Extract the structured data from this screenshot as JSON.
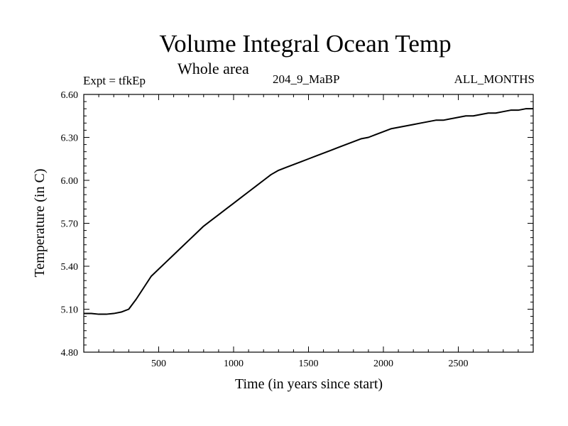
{
  "chart_data": {
    "type": "line",
    "title": "Volume Integral Ocean Temp",
    "subtitle": "Whole area",
    "experiment_label": "Expt = tfkEp",
    "period_label": "204_9_MaBP",
    "months_label": "ALL_MONTHS",
    "xlabel": "Time (in years since start)",
    "ylabel": "Temperature (in C)",
    "xlim": [
      0,
      3000
    ],
    "ylim": [
      4.8,
      6.6
    ],
    "x_ticks": [
      500,
      1000,
      1500,
      2000,
      2500
    ],
    "x_tick_labels": [
      "500",
      "1000",
      "1500",
      "2000",
      "2500"
    ],
    "y_ticks": [
      4.8,
      5.1,
      5.4,
      5.7,
      6.0,
      6.3,
      6.6
    ],
    "y_tick_labels": [
      "4.80",
      "5.10",
      "5.40",
      "5.70",
      "6.00",
      "6.30",
      "6.60"
    ],
    "grid": false,
    "series": [
      {
        "name": "",
        "color": "#000000",
        "x": [
          0,
          50,
          100,
          150,
          200,
          250,
          300,
          350,
          400,
          450,
          500,
          550,
          600,
          650,
          700,
          750,
          800,
          850,
          900,
          950,
          1000,
          1050,
          1100,
          1150,
          1200,
          1250,
          1300,
          1350,
          1400,
          1450,
          1500,
          1550,
          1600,
          1650,
          1700,
          1750,
          1800,
          1850,
          1900,
          1950,
          2000,
          2050,
          2100,
          2150,
          2200,
          2250,
          2300,
          2350,
          2400,
          2450,
          2500,
          2550,
          2600,
          2650,
          2700,
          2750,
          2800,
          2850,
          2900,
          2950,
          3000
        ],
        "values": [
          5.07,
          5.07,
          5.065,
          5.065,
          5.07,
          5.08,
          5.1,
          5.17,
          5.25,
          5.33,
          5.38,
          5.43,
          5.48,
          5.53,
          5.58,
          5.63,
          5.68,
          5.72,
          5.76,
          5.8,
          5.84,
          5.88,
          5.92,
          5.96,
          6.0,
          6.04,
          6.07,
          6.09,
          6.11,
          6.13,
          6.15,
          6.17,
          6.19,
          6.21,
          6.23,
          6.25,
          6.27,
          6.29,
          6.3,
          6.32,
          6.34,
          6.36,
          6.37,
          6.38,
          6.39,
          6.4,
          6.41,
          6.42,
          6.42,
          6.43,
          6.44,
          6.45,
          6.45,
          6.46,
          6.47,
          6.47,
          6.48,
          6.49,
          6.49,
          6.5,
          6.5
        ]
      }
    ]
  }
}
